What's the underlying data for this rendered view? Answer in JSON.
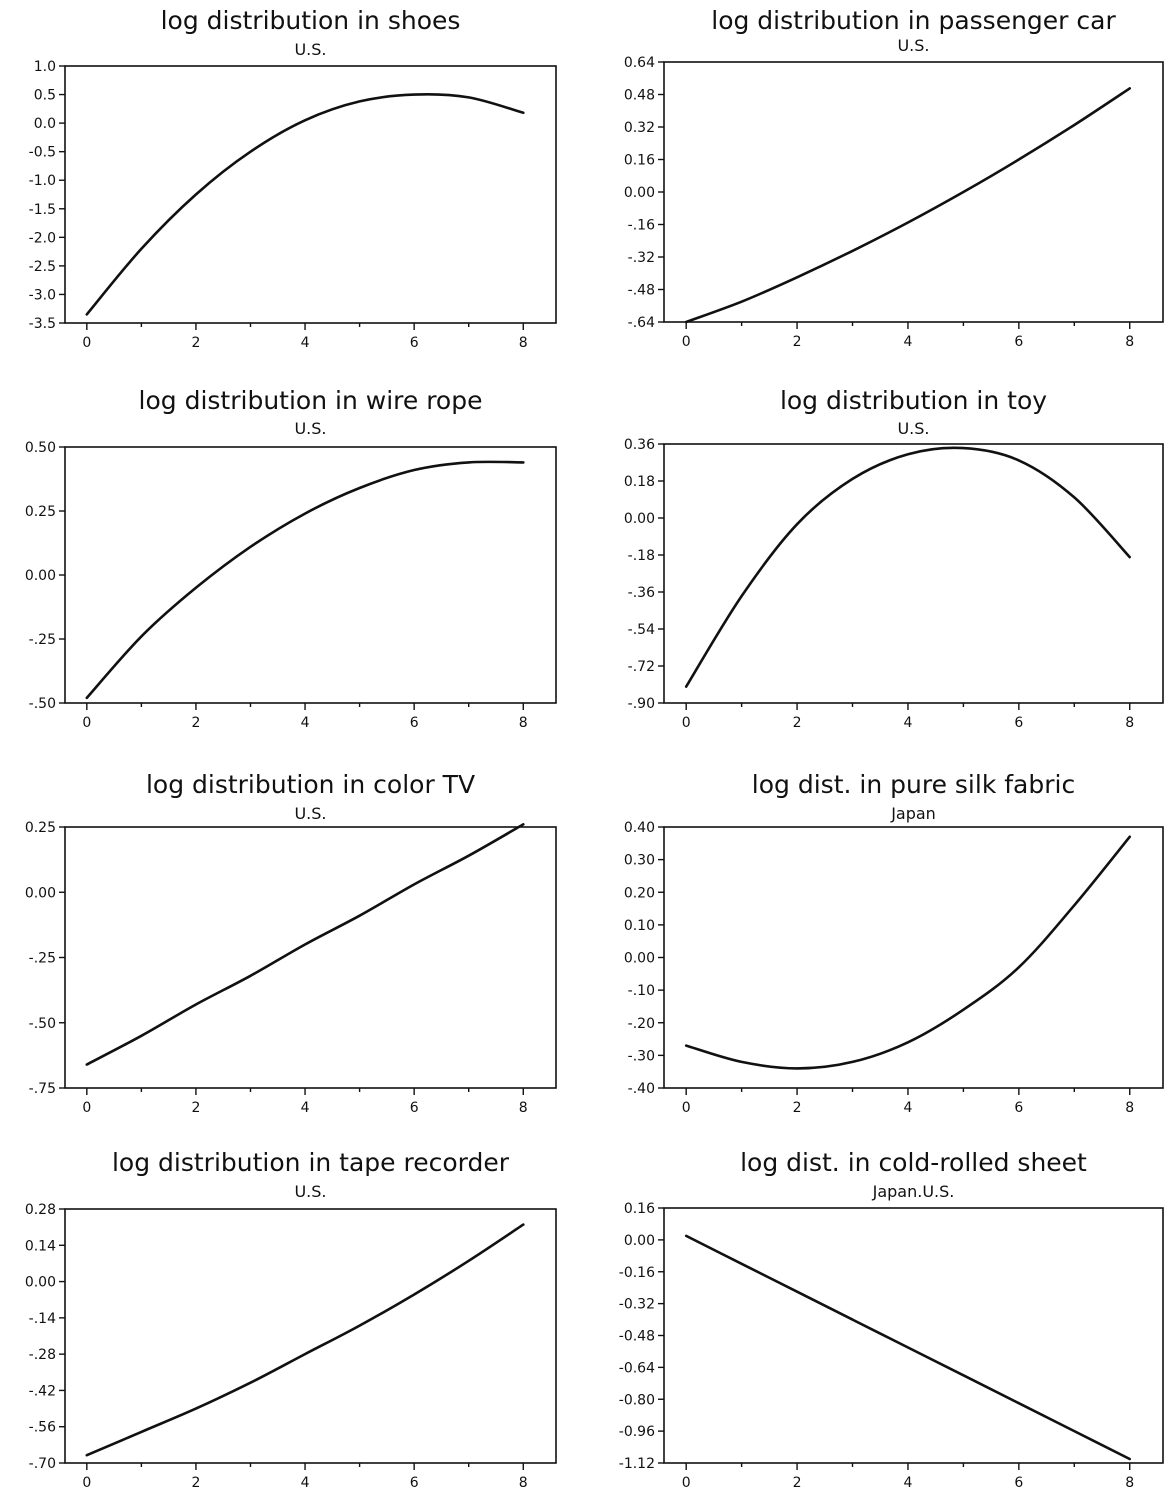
{
  "chart_data": [
    {
      "type": "line",
      "title": "log distribution in shoes",
      "subtitle": "U.S.",
      "x": [
        0,
        1,
        2,
        3,
        4,
        5,
        6,
        7,
        8
      ],
      "y": [
        -3.35,
        -2.2,
        -1.25,
        -0.5,
        0.05,
        0.38,
        0.5,
        0.45,
        0.18
      ],
      "xticks": [
        "0",
        "2",
        "4",
        "6",
        "8"
      ],
      "yticks": [
        "1.0",
        "0.5",
        "0.0",
        "-0.5",
        "-1.0",
        "-1.5",
        "-2.0",
        "-2.5",
        "-3.0",
        "-3.5"
      ],
      "ylim": [
        -3.5,
        1.0
      ]
    },
    {
      "type": "line",
      "title": "log distribution in passenger car",
      "subtitle": "U.S.",
      "x": [
        0,
        1,
        2,
        3,
        4,
        5,
        6,
        7,
        8
      ],
      "y": [
        -0.64,
        -0.54,
        -0.42,
        -0.29,
        -0.15,
        0.0,
        0.16,
        0.33,
        0.51
      ],
      "xticks": [
        "0",
        "2",
        "4",
        "6",
        "8"
      ],
      "yticks": [
        "0.64",
        "0.48",
        "0.32",
        "0.16",
        "0.00",
        "-.16",
        "-.32",
        "-.48",
        "-.64"
      ],
      "ylim": [
        -0.64,
        0.64
      ]
    },
    {
      "type": "line",
      "title": "log distribution in wire rope",
      "subtitle": "U.S.",
      "x": [
        0,
        1,
        2,
        3,
        4,
        5,
        6,
        7,
        8
      ],
      "y": [
        -0.48,
        -0.24,
        -0.05,
        0.11,
        0.24,
        0.34,
        0.41,
        0.44,
        0.44
      ],
      "xticks": [
        "0",
        "2",
        "4",
        "6",
        "8"
      ],
      "yticks": [
        "0.50",
        "0.25",
        "0.00",
        "-.25",
        "-.50"
      ],
      "ylim": [
        -0.5,
        0.5
      ]
    },
    {
      "type": "line",
      "title": "log distribution in toy",
      "subtitle": "U.S.",
      "x": [
        0,
        1,
        2,
        3,
        4,
        5,
        6,
        7,
        8
      ],
      "y": [
        -0.82,
        -0.38,
        -0.03,
        0.19,
        0.31,
        0.34,
        0.28,
        0.1,
        -0.19
      ],
      "xticks": [
        "0",
        "2",
        "4",
        "6",
        "8"
      ],
      "yticks": [
        "0.36",
        "0.18",
        "0.00",
        "-.18",
        "-.36",
        "-.54",
        "-.72",
        "-.90"
      ],
      "ylim": [
        -0.9,
        0.36
      ]
    },
    {
      "type": "line",
      "title": "log distribution in color TV",
      "subtitle": "U.S.",
      "x": [
        0,
        1,
        2,
        3,
        4,
        5,
        6,
        7,
        8
      ],
      "y": [
        -0.66,
        -0.55,
        -0.43,
        -0.32,
        -0.2,
        -0.09,
        0.03,
        0.14,
        0.26
      ],
      "xticks": [
        "0",
        "2",
        "4",
        "6",
        "8"
      ],
      "yticks": [
        "0.25",
        "0.00",
        "-.25",
        "-.50",
        "-.75"
      ],
      "ylim": [
        -0.75,
        0.25
      ]
    },
    {
      "type": "line",
      "title": "log dist. in pure silk fabric",
      "subtitle": "Japan",
      "x": [
        0,
        1,
        2,
        3,
        4,
        5,
        6,
        7,
        8
      ],
      "y": [
        -0.27,
        -0.32,
        -0.34,
        -0.32,
        -0.26,
        -0.16,
        -0.03,
        0.16,
        0.37
      ],
      "xticks": [
        "0",
        "2",
        "4",
        "6",
        "8"
      ],
      "yticks": [
        "0.40",
        "0.30",
        "0.20",
        "0.10",
        "0.00",
        "-.10",
        "-.20",
        "-.30",
        "-.40"
      ],
      "ylim": [
        -0.4,
        0.4
      ]
    },
    {
      "type": "line",
      "title": "log distribution in tape recorder",
      "subtitle": "U.S.",
      "x": [
        0,
        1,
        2,
        3,
        4,
        5,
        6,
        7,
        8
      ],
      "y": [
        -0.67,
        -0.58,
        -0.49,
        -0.39,
        -0.28,
        -0.17,
        -0.05,
        0.08,
        0.22
      ],
      "xticks": [
        "0",
        "2",
        "4",
        "6",
        "8"
      ],
      "yticks": [
        "0.28",
        "0.14",
        "0.00",
        "-.14",
        "-.28",
        "-.42",
        "-.56",
        "-.70"
      ],
      "ylim": [
        -0.7,
        0.28
      ]
    },
    {
      "type": "line",
      "title": "log dist. in cold-rolled sheet",
      "subtitle": "Japan.U.S.",
      "x": [
        0,
        1,
        2,
        3,
        4,
        5,
        6,
        7,
        8
      ],
      "y": [
        0.02,
        -0.12,
        -0.26,
        -0.4,
        -0.54,
        -0.68,
        -0.82,
        -0.96,
        -1.1
      ],
      "xticks": [
        "0",
        "2",
        "4",
        "6",
        "8"
      ],
      "yticks": [
        "0.16",
        "0.00",
        "-0.16",
        "-0.32",
        "-0.48",
        "-0.64",
        "-0.80",
        "-0.96",
        "-1.12"
      ],
      "ylim": [
        -1.12,
        0.16
      ]
    }
  ]
}
